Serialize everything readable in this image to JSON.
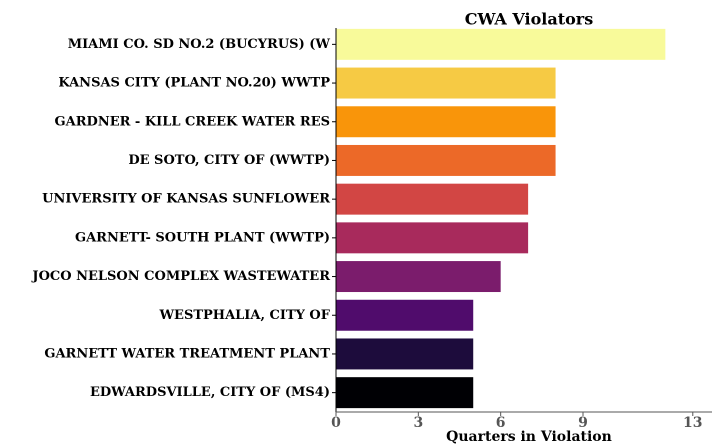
{
  "chart_data": {
    "type": "barh",
    "title": "CWA Violators",
    "xlabel": "Quarters in Violation",
    "categories": [
      "MIAMI CO. SD NO.2 (BUCYRUS) (W",
      "KANSAS CITY (PLANT NO.20) WWTP",
      "GARDNER - KILL CREEK WATER RES",
      "DE SOTO, CITY OF (WWTP)",
      "UNIVERSITY OF KANSAS SUNFLOWER",
      "GARNETT- SOUTH PLANT (WWTP)",
      "JOCO NELSON COMPLEX WASTEWATER",
      "WESTPHALIA, CITY OF",
      "GARNETT WATER TREATMENT PLANT",
      "EDWARDSVILLE, CITY OF (MS4)"
    ],
    "values": [
      12,
      8,
      8,
      8,
      7,
      7,
      6,
      5,
      5,
      5
    ],
    "colors": [
      "#f8fa9a",
      "#f6ca44",
      "#f9950a",
      "#ec6928",
      "#d24644",
      "#a82a5c",
      "#7b1c6c",
      "#500c6c",
      "#1d0c3c",
      "#000004"
    ],
    "xlim": [
      0,
      13.7
    ],
    "xticks": [
      0,
      3,
      6,
      9,
      13
    ],
    "grid": false
  }
}
